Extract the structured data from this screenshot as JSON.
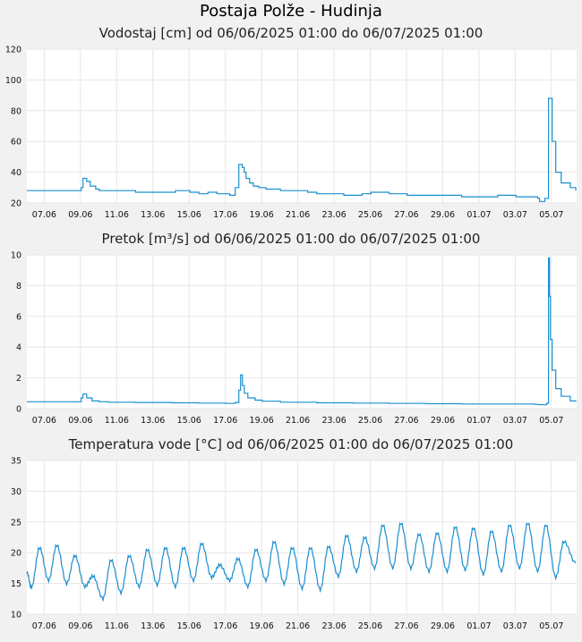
{
  "title": "Postaja Polže - Hudinja",
  "colors": {
    "line": "#1a8fd0",
    "plot_bg": "#ffffff",
    "page_bg": "#f1f1f1",
    "grid": "#e6e6e6"
  },
  "chart_data": [
    {
      "type": "line",
      "title": "Vodostaj [cm] od 06/06/2025 01:00 do 06/07/2025 01:00",
      "xlabel": "",
      "ylabel": "",
      "ylim": [
        20,
        120
      ],
      "yticks": [
        "20",
        "40",
        "60",
        "80",
        "100",
        "120"
      ],
      "xticks": [
        "07.06",
        "09.06",
        "11.06",
        "13.06",
        "15.06",
        "17.06",
        "19.06",
        "21.06",
        "23.06",
        "25.06",
        "27.06",
        "29.06",
        "01.07",
        "03.07",
        "05.07"
      ],
      "grid": true,
      "x_unit": "day offset from 06.06 01:00",
      "x": [
        0,
        2.8,
        3.0,
        3.1,
        3.3,
        3.5,
        3.8,
        4.0,
        4.5,
        5.5,
        6.0,
        7.8,
        8.2,
        9.0,
        9.5,
        10.0,
        10.5,
        11.2,
        11.5,
        11.7,
        11.9,
        12.0,
        12.1,
        12.3,
        12.5,
        12.8,
        13.2,
        14.0,
        15.0,
        15.5,
        16.0,
        17.0,
        17.5,
        18.0,
        18.5,
        19.0,
        20.0,
        21.0,
        22.0,
        23.5,
        24.0,
        25.0,
        26.0,
        27.0,
        28.0,
        28.2,
        28.3,
        28.6,
        28.8,
        29.0,
        29.2,
        29.5,
        30.0,
        30.3
      ],
      "y": [
        28,
        28,
        30,
        36,
        34,
        31,
        29,
        28,
        28,
        28,
        27,
        27,
        28,
        27,
        26,
        27,
        26,
        25,
        30,
        45,
        43,
        40,
        36,
        33,
        31,
        30,
        29,
        28,
        28,
        27,
        26,
        26,
        25,
        25,
        26,
        27,
        26,
        25,
        25,
        25,
        24,
        24,
        25,
        24,
        24,
        23,
        21,
        23,
        88,
        60,
        40,
        33,
        30,
        28
      ]
    },
    {
      "type": "line",
      "title": "Pretok [m³/s] od 06/06/2025 01:00 do 06/07/2025 01:00",
      "xlabel": "",
      "ylabel": "",
      "ylim": [
        0,
        10
      ],
      "yticks": [
        "0",
        "2",
        "4",
        "6",
        "8",
        "10"
      ],
      "xticks": [
        "07.06",
        "09.06",
        "11.06",
        "13.06",
        "15.06",
        "17.06",
        "19.06",
        "21.06",
        "23.06",
        "25.06",
        "27.06",
        "29.06",
        "01.07",
        "03.07",
        "05.07"
      ],
      "grid": true,
      "x_unit": "day offset from 06.06 01:00",
      "x": [
        0,
        2.8,
        3.0,
        3.1,
        3.3,
        3.6,
        4.0,
        4.5,
        6.0,
        8.0,
        9.5,
        11.0,
        11.5,
        11.7,
        11.8,
        11.9,
        12.0,
        12.2,
        12.6,
        13.0,
        14.0,
        16.0,
        18.0,
        20.0,
        22.0,
        24.0,
        26.0,
        28.0,
        28.2,
        28.4,
        28.6,
        28.7,
        28.8,
        28.85,
        28.9,
        29.0,
        29.2,
        29.5,
        30.0,
        30.3
      ],
      "y": [
        0.45,
        0.45,
        0.7,
        0.95,
        0.7,
        0.5,
        0.45,
        0.42,
        0.4,
        0.38,
        0.36,
        0.34,
        0.4,
        1.2,
        2.2,
        1.5,
        1.0,
        0.7,
        0.55,
        0.48,
        0.42,
        0.38,
        0.36,
        0.34,
        0.32,
        0.3,
        0.3,
        0.28,
        0.26,
        0.25,
        0.25,
        0.35,
        9.8,
        7.3,
        4.5,
        2.5,
        1.3,
        0.8,
        0.5,
        0.45
      ]
    },
    {
      "type": "line",
      "title": "Temperatura vode [°C] od 06/06/2025 01:00 do 06/07/2025 01:00",
      "xlabel": "",
      "ylabel": "",
      "ylim": [
        10,
        35
      ],
      "yticks": [
        "10",
        "15",
        "20",
        "25",
        "30",
        "35"
      ],
      "xticks": [
        "07.06",
        "09.06",
        "11.06",
        "13.06",
        "15.06",
        "17.06",
        "19.06",
        "21.06",
        "23.06",
        "25.06",
        "27.06",
        "29.06",
        "01.07",
        "03.07",
        "05.07"
      ],
      "grid": true,
      "x_unit": "day offset from 06.06 01:00",
      "daily_max_x": [
        0.7,
        1.65,
        2.65,
        3.65,
        4.65,
        5.65,
        6.65,
        7.65,
        8.65,
        9.65,
        10.65,
        11.65,
        12.65,
        13.65,
        14.65,
        15.65,
        16.65,
        17.65,
        18.65,
        19.65,
        20.65,
        21.65,
        22.65,
        23.65,
        24.65,
        25.65,
        26.65,
        27.65,
        28.65,
        29.65
      ],
      "daily_max": [
        20.8,
        21.2,
        19.5,
        16.2,
        18.8,
        19.5,
        20.5,
        20.8,
        20.8,
        21.5,
        18.0,
        19.0,
        20.5,
        21.8,
        20.8,
        20.8,
        21.0,
        22.8,
        22.5,
        24.5,
        24.8,
        23.0,
        23.2,
        24.2,
        24.0,
        23.5,
        24.5,
        24.8,
        24.5,
        21.8
      ],
      "daily_min": [
        14.3,
        15.5,
        15.0,
        14.5,
        12.5,
        13.5,
        14.5,
        14.8,
        14.5,
        15.5,
        16.0,
        15.5,
        14.5,
        15.5,
        15.0,
        14.2,
        14.0,
        16.2,
        17.0,
        17.5,
        17.5,
        17.5,
        17.0,
        17.0,
        17.2,
        16.5,
        17.0,
        17.5,
        17.0,
        16.0
      ],
      "start_value": 16.8,
      "end_value": 18.3
    }
  ]
}
